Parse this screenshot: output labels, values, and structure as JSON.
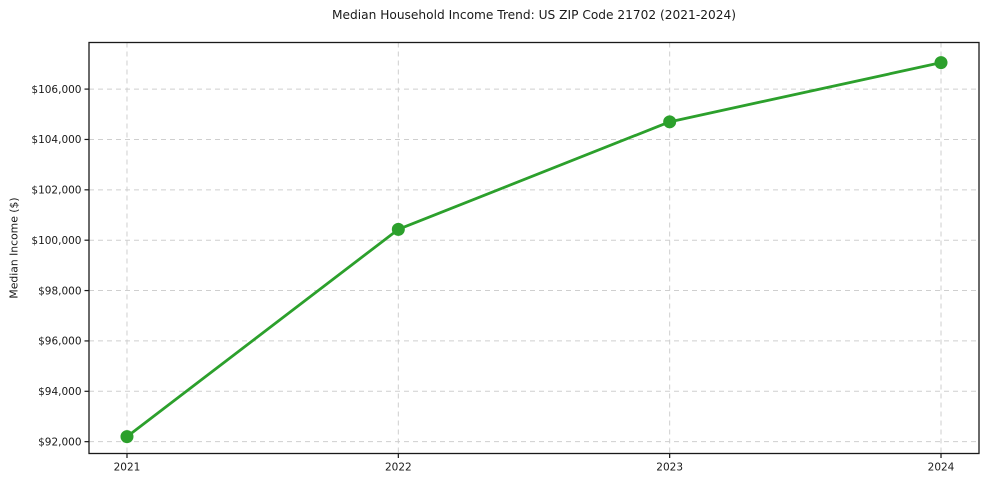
{
  "chart_data": {
    "type": "line",
    "title": "Median Household Income Trend: US ZIP Code 21702 (2021-2024)",
    "xlabel": "",
    "ylabel": "Median Income ($)",
    "categories": [
      "2021",
      "2022",
      "2023",
      "2024"
    ],
    "series": [
      {
        "name": "Median Household Income",
        "values": [
          92200,
          100430,
          104700,
          107050
        ]
      }
    ],
    "y_ticks": [
      {
        "value": 92000,
        "label": "$92,000"
      },
      {
        "value": 94000,
        "label": "$94,000"
      },
      {
        "value": 96000,
        "label": "$96,000"
      },
      {
        "value": 98000,
        "label": "$98,000"
      },
      {
        "value": 100000,
        "label": "$100,000"
      },
      {
        "value": 102000,
        "label": "$102,000"
      },
      {
        "value": 104000,
        "label": "$104,000"
      },
      {
        "value": 106000,
        "label": "$106,000"
      }
    ],
    "ylim": [
      91530,
      107850
    ],
    "x_margin_fraction": 0.14,
    "grid": true,
    "grid_style": "dashed",
    "legend": false,
    "marker": "circle",
    "colors": {
      "line": "#2ca02c",
      "marker": "#2ca02c",
      "grid": "#cfcfcf",
      "spine": "#1a1a1a",
      "text": "#1a1a1a",
      "background": "#ffffff"
    }
  }
}
